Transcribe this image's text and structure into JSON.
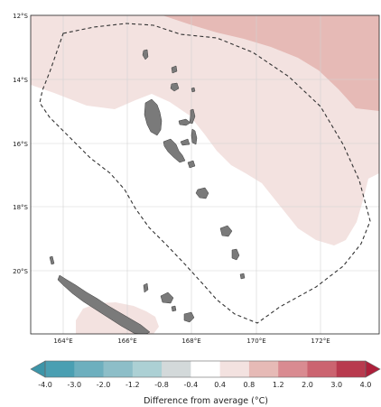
{
  "map": {
    "latitude_labels": [
      "12°S",
      "14°S",
      "16°S",
      "18°S",
      "20°S"
    ],
    "longitude_labels": [
      "164°E",
      "166°E",
      "168°E",
      "170°E",
      "172°E"
    ]
  },
  "colorbar": {
    "title": "Difference from average (°C)",
    "tick_labels": [
      "-4.0",
      "-3.0",
      "-2.0",
      "-1.2",
      "-0.8",
      "-0.4",
      "0.4",
      "0.8",
      "1.2",
      "2.0",
      "3.0",
      "4.0"
    ],
    "colors": [
      "#4a9fb2",
      "#6dafbe",
      "#8dbec8",
      "#acd0d4",
      "#d3d9da",
      "#ffffff",
      "#f3e2e0",
      "#e6bab6",
      "#d98b91",
      "#cb6470",
      "#b83a4e"
    ],
    "under_color": "#3d95a8",
    "over_color": "#ad1f3a"
  },
  "colors": {
    "land": "#7a7a7a",
    "anomaly_0_4_to_0_8": "#f3e2e0",
    "anomaly_0_8_to_1_2": "#e6bab6",
    "eez_boundary": "#333333"
  }
}
